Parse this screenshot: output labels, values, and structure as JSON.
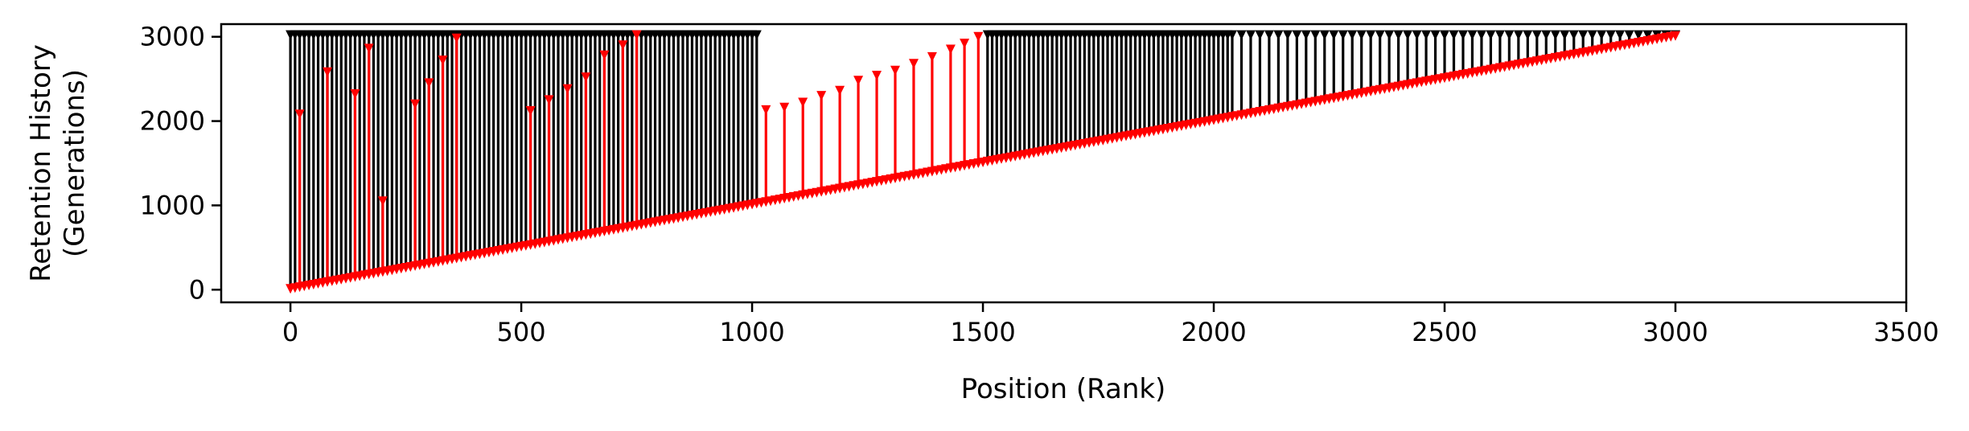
{
  "chart_data": {
    "type": "stem",
    "xlabel": "Position (Rank)",
    "ylabel_lines": [
      "Retention History",
      "(Generations)"
    ],
    "xlim": [
      -150,
      3500
    ],
    "ylim": [
      -150,
      3150
    ],
    "xticks": [
      0,
      500,
      1000,
      1500,
      2000,
      2500,
      3000,
      3500
    ],
    "yticks": [
      0,
      1000,
      2000,
      3000
    ],
    "grid": false,
    "legend": "none",
    "marker": "down-triangle",
    "series": [
      {
        "color": "#000000",
        "segments": [
          {
            "x_start": 0,
            "x_end": 180,
            "step": 10,
            "top": 3020
          },
          {
            "x_start": 190,
            "x_end": 500,
            "step": 10,
            "top": 3020
          },
          {
            "x_start": 510,
            "x_end": 1010,
            "step": 10,
            "top": 3020
          },
          {
            "x_start": 1510,
            "x_end": 2040,
            "step": 10,
            "top": 3020
          },
          {
            "x_start": 2060,
            "x_end": 3000,
            "step": 20,
            "top": 3020
          }
        ],
        "bottom_rule": "rank"
      },
      {
        "color": "#ff0000",
        "segments": [
          {
            "x_start": 0,
            "x_end": 3000,
            "step": 10,
            "top": "rank_plus_step"
          }
        ],
        "bottom_rule": "rank"
      }
    ],
    "red_peaks": [
      {
        "x": 20,
        "y": 2080
      },
      {
        "x": 80,
        "y": 2580
      },
      {
        "x": 140,
        "y": 2320
      },
      {
        "x": 170,
        "y": 2860
      },
      {
        "x": 200,
        "y": 1050
      },
      {
        "x": 270,
        "y": 2200
      },
      {
        "x": 300,
        "y": 2450
      },
      {
        "x": 330,
        "y": 2720
      },
      {
        "x": 360,
        "y": 2980
      },
      {
        "x": 520,
        "y": 2120
      },
      {
        "x": 560,
        "y": 2250
      },
      {
        "x": 600,
        "y": 2380
      },
      {
        "x": 640,
        "y": 2520
      },
      {
        "x": 680,
        "y": 2780
      },
      {
        "x": 720,
        "y": 2900
      },
      {
        "x": 750,
        "y": 3020
      },
      {
        "x": 1030,
        "y": 2130
      },
      {
        "x": 1070,
        "y": 2160
      },
      {
        "x": 1110,
        "y": 2220
      },
      {
        "x": 1150,
        "y": 2300
      },
      {
        "x": 1190,
        "y": 2360
      },
      {
        "x": 1230,
        "y": 2480
      },
      {
        "x": 1270,
        "y": 2540
      },
      {
        "x": 1310,
        "y": 2600
      },
      {
        "x": 1350,
        "y": 2680
      },
      {
        "x": 1390,
        "y": 2760
      },
      {
        "x": 1430,
        "y": 2850
      },
      {
        "x": 1460,
        "y": 2920
      },
      {
        "x": 1490,
        "y": 3000
      }
    ]
  }
}
